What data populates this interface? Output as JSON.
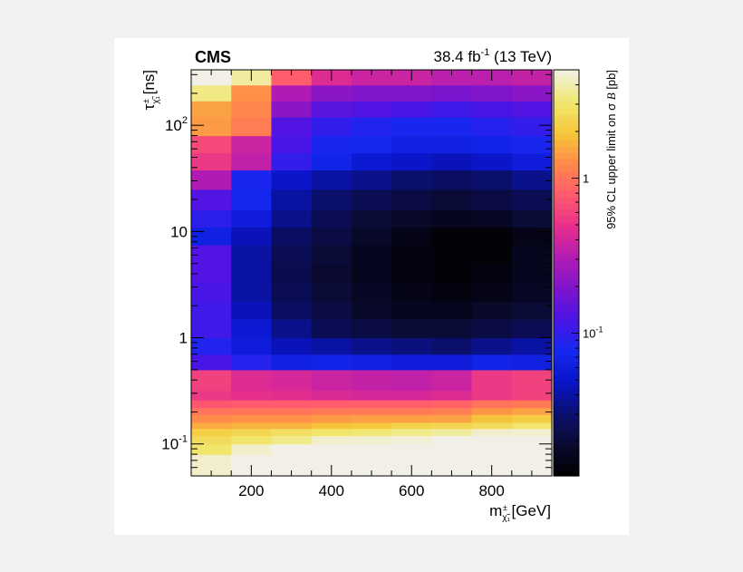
{
  "chart_data": {
    "type": "heatmap",
    "experiment_label": "CMS",
    "header_right": {
      "lumi": "38.4 fb",
      "lumi_exponent": "-1",
      "energy": " (13 TeV)"
    },
    "xlabel": {
      "main": "m",
      "subscript": "χ̃₁",
      "superscript": "±",
      "unit": " [GeV]"
    },
    "ylabel": {
      "main": "τ",
      "subscript": "χ̃₁",
      "superscript": "±",
      "unit": " [ns]"
    },
    "zlabel": {
      "prefix": "95% CL upper limit on σ ",
      "symbol": "B",
      "unit": " [pb]"
    },
    "x_edges": [
      50,
      150,
      250,
      350,
      450,
      550,
      650,
      750,
      850,
      950
    ],
    "x_range": [
      50,
      950
    ],
    "x_ticks": [
      {
        "value": 200,
        "label": "200"
      },
      {
        "value": 400,
        "label": "400"
      },
      {
        "value": 600,
        "label": "600"
      },
      {
        "value": 800,
        "label": "800"
      }
    ],
    "y_scale": "log",
    "y_range": [
      0.05,
      333
    ],
    "y_edges": [
      0.05,
      0.065,
      0.08,
      0.1,
      0.12,
      0.14,
      0.16,
      0.19,
      0.22,
      0.26,
      0.32,
      0.5,
      0.7,
      1.0,
      1.5,
      2.2,
      3.3,
      5.0,
      7.5,
      11,
      16,
      25,
      38,
      55,
      80,
      120,
      170,
      240,
      333
    ],
    "y_ticks": [
      {
        "value": 0.1,
        "base": "10",
        "exponent": "-1"
      },
      {
        "value": 1,
        "base": "1",
        "exponent": ""
      },
      {
        "value": 10,
        "base": "10",
        "exponent": ""
      },
      {
        "value": 100,
        "base": "10",
        "exponent": "2"
      }
    ],
    "z_scale": "log",
    "z_range": [
      0.012,
      5
    ],
    "z_ticks": [
      {
        "value": 0.1,
        "base": "10",
        "exponent": "-1"
      },
      {
        "value": 1,
        "base": "1",
        "exponent": ""
      }
    ],
    "z_values": [
      [
        4.5,
        5.0,
        5.0,
        5.0,
        5.0,
        5.0,
        5.0,
        5.0,
        5.0
      ],
      [
        4.5,
        5.0,
        5.0,
        5.0,
        5.0,
        5.0,
        5.0,
        5.0,
        5.0
      ],
      [
        3.0,
        4.5,
        5.0,
        5.0,
        5.0,
        5.0,
        5.0,
        5.0,
        5.0
      ],
      [
        2.6,
        3.0,
        3.5,
        4.5,
        4.6,
        4.7,
        5.0,
        5.0,
        5.0
      ],
      [
        2.2,
        2.4,
        2.8,
        3.0,
        3.2,
        3.5,
        3.8,
        4.5,
        4.6
      ],
      [
        1.6,
        1.7,
        1.7,
        1.9,
        2.0,
        2.3,
        2.4,
        2.6,
        3.0
      ],
      [
        1.25,
        1.3,
        1.3,
        1.4,
        1.45,
        1.45,
        1.5,
        1.9,
        2.1
      ],
      [
        1.0,
        1.0,
        1.0,
        1.05,
        1.05,
        1.05,
        1.1,
        1.35,
        1.5
      ],
      [
        0.75,
        0.78,
        0.78,
        0.8,
        0.82,
        0.82,
        0.85,
        1.0,
        1.05
      ],
      [
        0.55,
        0.5,
        0.48,
        0.44,
        0.42,
        0.42,
        0.45,
        0.55,
        0.6
      ],
      [
        0.6,
        0.45,
        0.42,
        0.38,
        0.36,
        0.35,
        0.38,
        0.55,
        0.6
      ],
      [
        0.12,
        0.09,
        0.065,
        0.07,
        0.065,
        0.06,
        0.06,
        0.07,
        0.065
      ],
      [
        0.085,
        0.06,
        0.045,
        0.04,
        0.035,
        0.033,
        0.03,
        0.035,
        0.04
      ],
      [
        0.11,
        0.055,
        0.035,
        0.025,
        0.022,
        0.02,
        0.02,
        0.022,
        0.025
      ],
      [
        0.11,
        0.045,
        0.028,
        0.022,
        0.018,
        0.016,
        0.016,
        0.018,
        0.02
      ],
      [
        0.12,
        0.04,
        0.025,
        0.02,
        0.017,
        0.015,
        0.014,
        0.015,
        0.017
      ],
      [
        0.13,
        0.04,
        0.024,
        0.019,
        0.016,
        0.014,
        0.013,
        0.014,
        0.016
      ],
      [
        0.13,
        0.04,
        0.025,
        0.02,
        0.016,
        0.014,
        0.013,
        0.013,
        0.016
      ],
      [
        0.065,
        0.045,
        0.028,
        0.022,
        0.018,
        0.015,
        0.013,
        0.013,
        0.015
      ],
      [
        0.095,
        0.06,
        0.035,
        0.025,
        0.02,
        0.018,
        0.016,
        0.017,
        0.02
      ],
      [
        0.13,
        0.075,
        0.04,
        0.03,
        0.025,
        0.022,
        0.02,
        0.022,
        0.025
      ],
      [
        0.3,
        0.08,
        0.05,
        0.04,
        0.035,
        0.03,
        0.028,
        0.03,
        0.035
      ],
      [
        0.55,
        0.35,
        0.1,
        0.07,
        0.055,
        0.05,
        0.045,
        0.05,
        0.06
      ],
      [
        0.65,
        0.38,
        0.12,
        0.08,
        0.075,
        0.065,
        0.065,
        0.07,
        0.08
      ],
      [
        1.4,
        1.1,
        0.13,
        0.1,
        0.085,
        0.08,
        0.08,
        0.09,
        0.1
      ],
      [
        1.5,
        1.2,
        0.22,
        0.14,
        0.13,
        0.12,
        0.11,
        0.12,
        0.13
      ],
      [
        3.4,
        1.3,
        0.3,
        0.22,
        0.2,
        0.2,
        0.19,
        0.2,
        0.22
      ],
      [
        5.0,
        3.8,
        0.8,
        0.45,
        0.38,
        0.38,
        0.33,
        0.33,
        0.36
      ]
    ],
    "grid": false,
    "colors": {
      "palette_stops": [
        "#000000",
        "#0a0a30",
        "#0a0f6e",
        "#0a14c8",
        "#1428f0",
        "#4a14e6",
        "#7d14cc",
        "#b31cb3",
        "#e62e8c",
        "#ff5a6e",
        "#ff8a4a",
        "#f5c83a",
        "#f0e870",
        "#f2f0e6"
      ],
      "axis": "#000000",
      "page_background": "#f2f2f2",
      "plot_background": "#ffffff"
    }
  }
}
